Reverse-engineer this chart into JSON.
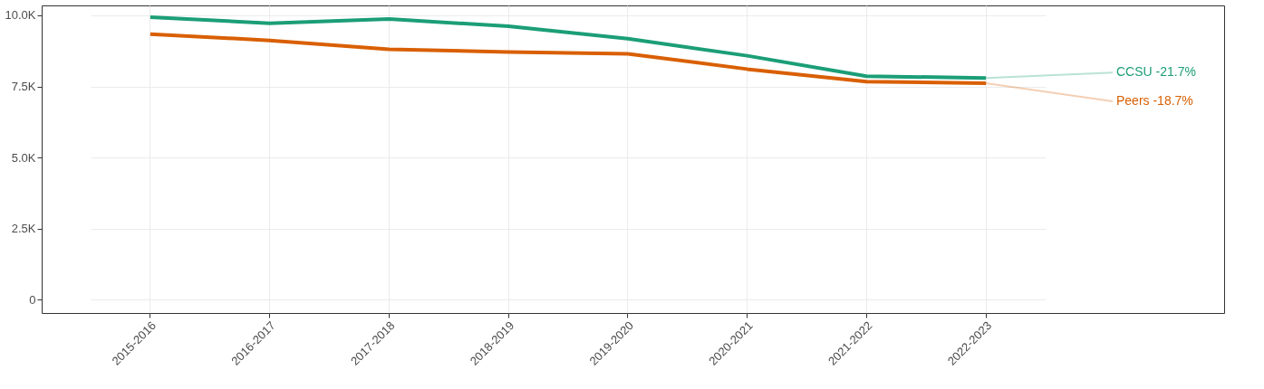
{
  "chart_data": {
    "type": "line",
    "categories": [
      "2015-2016",
      "2016-2017",
      "2017-2018",
      "2018-2019",
      "2019-2020",
      "2020-2021",
      "2021-2022",
      "2022-2023"
    ],
    "series": [
      {
        "name": "CCSU -21.7%",
        "color": "#1b9e77",
        "values": [
          9940,
          9720,
          9870,
          9620,
          9180,
          8580,
          7860,
          7800
        ]
      },
      {
        "name": "Peers -18.7%",
        "color": "#d95f02",
        "values": [
          9340,
          9120,
          8810,
          8710,
          8650,
          8110,
          7670,
          7610
        ]
      }
    ],
    "ylim": [
      -470,
      10350
    ],
    "yticks": [
      0,
      {
        "value": 2500,
        "label": "2.5K"
      },
      {
        "value": 5000,
        "label": "5.0K"
      },
      {
        "value": 7500,
        "label": "7.5K"
      },
      {
        "value": 10000,
        "label": "10.0K"
      }
    ],
    "grid": true,
    "marker": "none",
    "line_style": "solid"
  }
}
